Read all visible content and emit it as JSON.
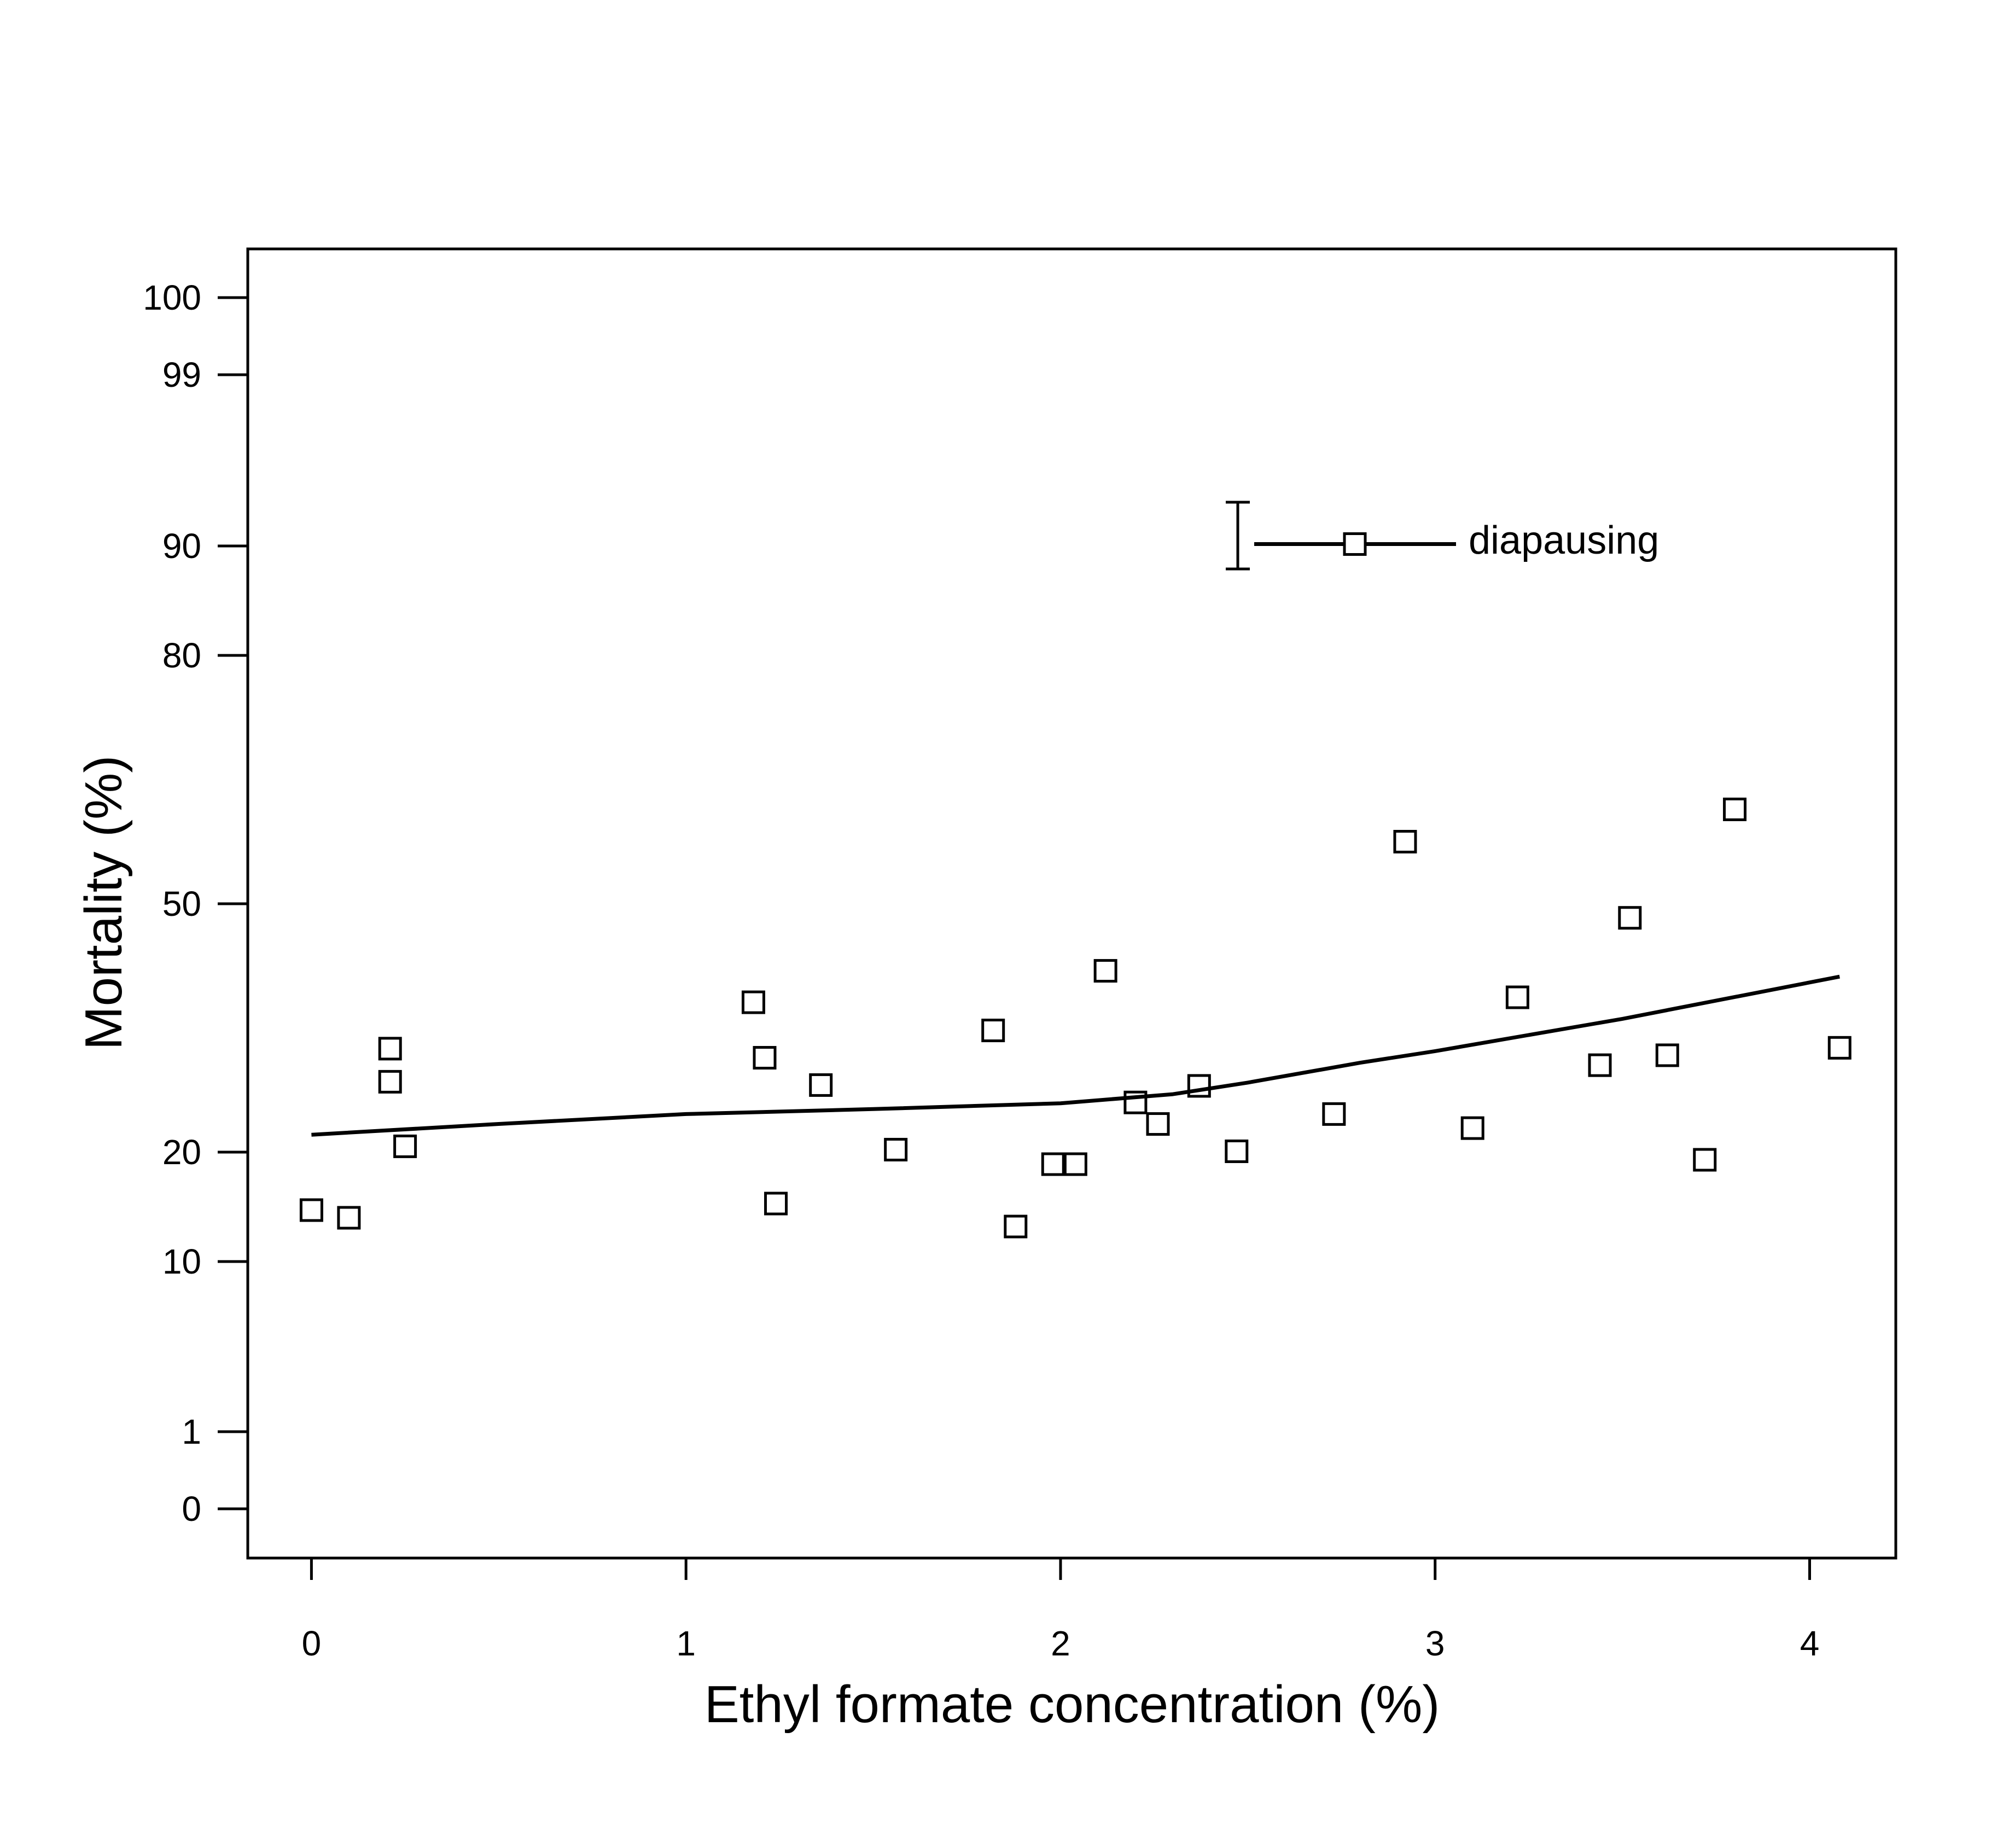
{
  "chart_data": {
    "type": "scatter",
    "xlabel": "Ethyl formate concentration (%)",
    "ylabel": "Mortality (%)",
    "xlim": [
      -0.17,
      4.23
    ],
    "x_ticks": [
      0,
      1,
      2,
      3,
      4
    ],
    "y_scale": "probit",
    "y_ticks": [
      0,
      1,
      10,
      20,
      50,
      80,
      90,
      99,
      100
    ],
    "grid": false,
    "legend": {
      "position": "top-right",
      "entries": [
        "diapausing"
      ]
    },
    "series": [
      {
        "name": "diapausing",
        "marker": "open-square",
        "points": [
          [
            0.0,
            14.7
          ],
          [
            0.1,
            14.0
          ],
          [
            0.21,
            32.5
          ],
          [
            0.21,
            28.5
          ],
          [
            0.25,
            20.7
          ],
          [
            1.18,
            38.1
          ],
          [
            1.21,
            31.4
          ],
          [
            1.24,
            15.3
          ],
          [
            1.36,
            28.1
          ],
          [
            1.56,
            20.3
          ],
          [
            1.82,
            34.7
          ],
          [
            1.88,
            13.2
          ],
          [
            1.98,
            18.9
          ],
          [
            2.04,
            18.9
          ],
          [
            2.12,
            41.9
          ],
          [
            2.2,
            26.0
          ],
          [
            2.26,
            23.4
          ],
          [
            2.37,
            28.0
          ],
          [
            2.47,
            20.1
          ],
          [
            2.73,
            24.6
          ],
          [
            2.92,
            57.5
          ],
          [
            3.1,
            22.9
          ],
          [
            3.22,
            38.7
          ],
          [
            3.44,
            30.5
          ],
          [
            3.52,
            48.3
          ],
          [
            3.62,
            31.7
          ],
          [
            3.72,
            19.3
          ],
          [
            3.8,
            61.4
          ],
          [
            4.08,
            32.6
          ]
        ]
      }
    ],
    "fitted_line": {
      "x": [
        0.0,
        0.5,
        1.0,
        1.5,
        2.0,
        2.3,
        2.5,
        2.8,
        3.0,
        3.5,
        4.08
      ],
      "y": [
        22.1,
        23.4,
        24.6,
        25.2,
        25.9,
        27.0,
        28.4,
        30.8,
        32.2,
        36.1,
        41.2
      ]
    },
    "legend_error_bar": {
      "center": 90.1,
      "low": 87.9,
      "high": 92.3
    }
  }
}
